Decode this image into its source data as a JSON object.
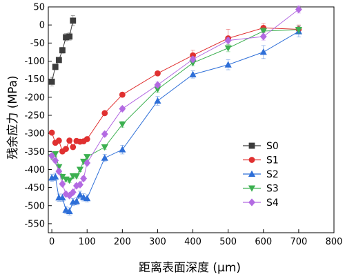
{
  "chart_data": {
    "type": "line",
    "xlabel": "距离表面深度 (μm)",
    "ylabel": "残余应力 (MPa)",
    "xlim": [
      -10,
      800
    ],
    "ylim": [
      -575,
      50
    ],
    "xticks": [
      0,
      100,
      200,
      300,
      400,
      500,
      600,
      700,
      800
    ],
    "yticks": [
      50,
      0,
      -50,
      -100,
      -150,
      -200,
      -250,
      -300,
      -350,
      -400,
      -450,
      -500,
      -550
    ],
    "legend_position": "right-center",
    "grid": false,
    "series": [
      {
        "name": "S0",
        "color": "#3c3c3c",
        "marker": "square",
        "x": [
          0,
          10,
          20,
          30,
          40,
          50,
          60
        ],
        "y": [
          -157,
          -116,
          -97,
          -70,
          -34,
          -32,
          12
        ],
        "err": [
          12,
          8,
          6,
          8,
          10,
          10,
          14
        ]
      },
      {
        "name": "S1",
        "color": "#e03030",
        "marker": "circle",
        "x": [
          0,
          10,
          20,
          30,
          40,
          50,
          60,
          70,
          80,
          90,
          100,
          150,
          200,
          300,
          400,
          500,
          600,
          700
        ],
        "y": [
          -298,
          -326,
          -320,
          -350,
          -343,
          -320,
          -338,
          -321,
          -323,
          -322,
          -316,
          -244,
          -193,
          -134,
          -84,
          -37,
          -8,
          -12
        ],
        "err": [
          6,
          6,
          6,
          6,
          6,
          6,
          6,
          6,
          6,
          6,
          6,
          6,
          6,
          6,
          14,
          25,
          12,
          12
        ]
      },
      {
        "name": "S2",
        "color": "#2e6fd8",
        "marker": "triangle-up",
        "x": [
          0,
          10,
          20,
          30,
          40,
          50,
          60,
          70,
          80,
          90,
          100,
          150,
          200,
          300,
          400,
          500,
          600,
          700
        ],
        "y": [
          -423,
          -420,
          -478,
          -478,
          -512,
          -516,
          -490,
          -488,
          -470,
          -477,
          -480,
          -368,
          -345,
          -210,
          -137,
          -110,
          -75,
          -18
        ],
        "err": [
          10,
          10,
          10,
          10,
          10,
          10,
          10,
          10,
          10,
          10,
          10,
          10,
          12,
          12,
          10,
          14,
          18,
          15
        ]
      },
      {
        "name": "S3",
        "color": "#3cb050",
        "marker": "triangle-down",
        "x": [
          0,
          10,
          20,
          30,
          40,
          50,
          60,
          70,
          80,
          90,
          100,
          150,
          200,
          300,
          400,
          500,
          600,
          700
        ],
        "y": [
          -365,
          -357,
          -393,
          -420,
          -427,
          -430,
          -418,
          -418,
          -400,
          -378,
          -365,
          -338,
          -275,
          -178,
          -105,
          -64,
          -17,
          -13
        ],
        "err": [
          6,
          6,
          6,
          6,
          6,
          6,
          6,
          6,
          6,
          6,
          6,
          6,
          8,
          8,
          8,
          10,
          10,
          10
        ]
      },
      {
        "name": "S4",
        "color": "#b36ae2",
        "marker": "diamond",
        "x": [
          0,
          10,
          20,
          30,
          40,
          50,
          60,
          70,
          80,
          90,
          100,
          150,
          200,
          300,
          400,
          500,
          600,
          700
        ],
        "y": [
          -362,
          -375,
          -405,
          -440,
          -468,
          -472,
          -463,
          -445,
          -442,
          -425,
          -382,
          -302,
          -232,
          -166,
          -95,
          -43,
          -32,
          43
        ],
        "err": [
          6,
          6,
          6,
          6,
          6,
          6,
          6,
          6,
          6,
          6,
          6,
          6,
          6,
          8,
          8,
          8,
          10,
          10
        ]
      }
    ]
  }
}
